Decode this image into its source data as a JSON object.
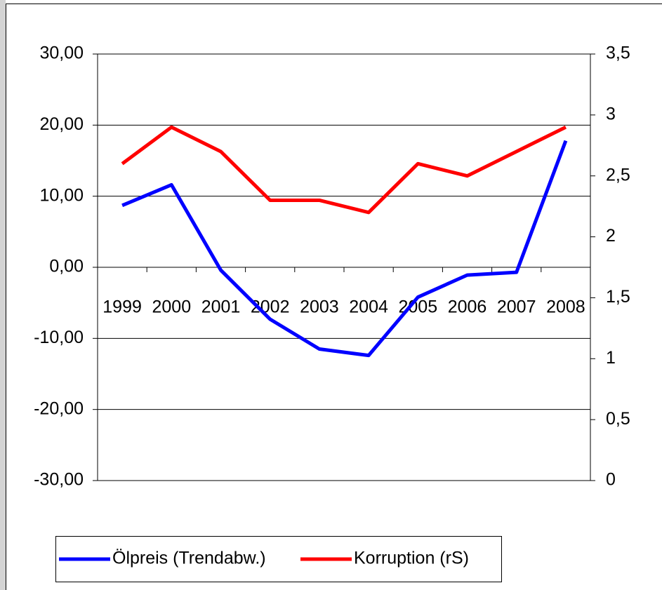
{
  "chart_data": {
    "type": "line",
    "categories": [
      "1999",
      "2000",
      "2001",
      "2002",
      "2003",
      "2004",
      "2005",
      "2006",
      "2007",
      "2008"
    ],
    "series": [
      {
        "name": "Ölpreis (Trendabw.)",
        "color": "#0000ff",
        "values": [
          8.7,
          11.6,
          -0.4,
          -7.3,
          -11.5,
          -12.4,
          -4.2,
          -1.1,
          -0.7,
          17.8
        ]
      },
      {
        "name": "Korruption (rS)",
        "color": "#ff0000",
        "axis": "y2",
        "values": [
          2.6,
          2.9,
          2.7,
          2.3,
          2.3,
          2.2,
          2.6,
          2.5,
          2.7,
          2.9
        ]
      }
    ],
    "ylim": [
      -30,
      30
    ],
    "yticks": [
      {
        "value": -30,
        "label": "-30,00"
      },
      {
        "value": -20,
        "label": "-20,00"
      },
      {
        "value": -10,
        "label": "-10,00"
      },
      {
        "value": 0,
        "label": "0,00"
      },
      {
        "value": 10,
        "label": "10,00"
      },
      {
        "value": 20,
        "label": "20,00"
      },
      {
        "value": 30,
        "label": "30,00"
      }
    ],
    "y2lim": [
      0,
      3.5
    ],
    "y2ticks": [
      0,
      {
        "value": 0.5,
        "label": "0,5"
      },
      1,
      {
        "value": 1.5,
        "label": "1,5"
      },
      2,
      {
        "value": 2.5,
        "label": "2,5"
      },
      3,
      {
        "value": 3.5,
        "label": "3,5"
      }
    ],
    "grid": true,
    "legend": "bottom"
  }
}
